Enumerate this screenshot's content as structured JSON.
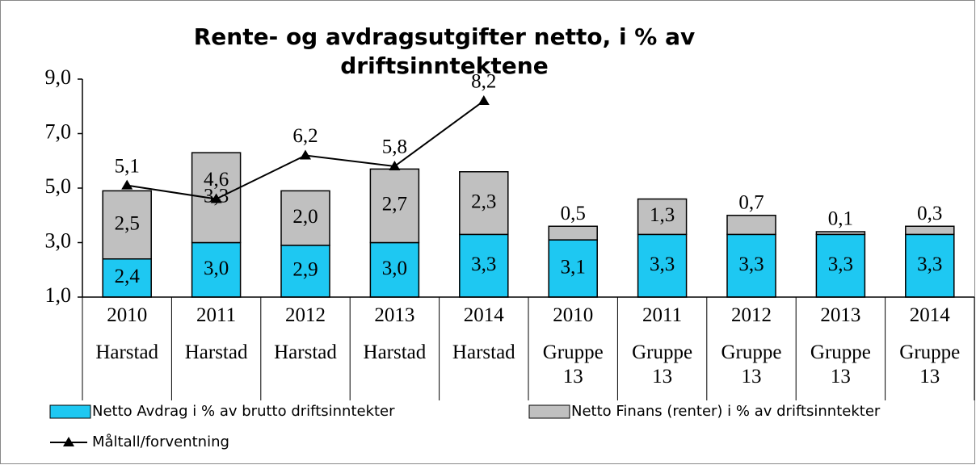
{
  "chart_data": {
    "type": "bar",
    "stacked": true,
    "title": "Rente- og avdragsutgifter netto, i % av driftsinntektene",
    "categories": [
      [
        "2010",
        "Harstad"
      ],
      [
        "2011",
        "Harstad"
      ],
      [
        "2012",
        "Harstad"
      ],
      [
        "2013",
        "Harstad"
      ],
      [
        "2014",
        "Harstad"
      ],
      [
        "2010",
        "Gruppe 13"
      ],
      [
        "2011",
        "Gruppe 13"
      ],
      [
        "2012",
        "Gruppe 13"
      ],
      [
        "2013",
        "Gruppe 13"
      ],
      [
        "2014",
        "Gruppe 13"
      ]
    ],
    "series": [
      {
        "name": "Netto Avdrag i % av brutto driftsinntekter",
        "type": "bar",
        "color": "#1ec8f2",
        "values": [
          2.4,
          3.0,
          2.9,
          3.0,
          3.3,
          3.1,
          3.3,
          3.3,
          3.3,
          3.3
        ],
        "value_labels": [
          "2,4",
          "3,0",
          "2,9",
          "3,0",
          "3,3",
          "3,1",
          "3,3",
          "3,3",
          "3,3",
          "3,3"
        ]
      },
      {
        "name": "Netto Finans (renter)  i % av driftsinntekter",
        "type": "bar",
        "color": "#c0c0c0",
        "values": [
          2.5,
          3.3,
          2.0,
          2.7,
          2.3,
          0.5,
          1.3,
          0.7,
          0.1,
          0.3
        ],
        "value_labels": [
          "2,5",
          "3,3",
          "2,0",
          "2,7",
          "2,3",
          "0,5",
          "1,3",
          "0,7",
          "0,1",
          "0,3"
        ]
      },
      {
        "name": "Måltall/forventning",
        "type": "line",
        "color": "#000000",
        "values": [
          5.1,
          4.6,
          6.2,
          5.8,
          8.2,
          null,
          null,
          null,
          null,
          null
        ],
        "value_labels": [
          "5,1",
          "4,6",
          "6,2",
          "5,8",
          "8,2",
          null,
          null,
          null,
          null,
          null
        ]
      }
    ],
    "ylim": [
      1.0,
      9.0
    ],
    "yticks": [
      {
        "value": 1.0,
        "label": "1,0"
      },
      {
        "value": 3.0,
        "label": "3,0"
      },
      {
        "value": 5.0,
        "label": "5,0"
      },
      {
        "value": 7.0,
        "label": "7,0"
      },
      {
        "value": 9.0,
        "label": "9,0"
      }
    ],
    "grid": false,
    "legend": "bottom"
  }
}
